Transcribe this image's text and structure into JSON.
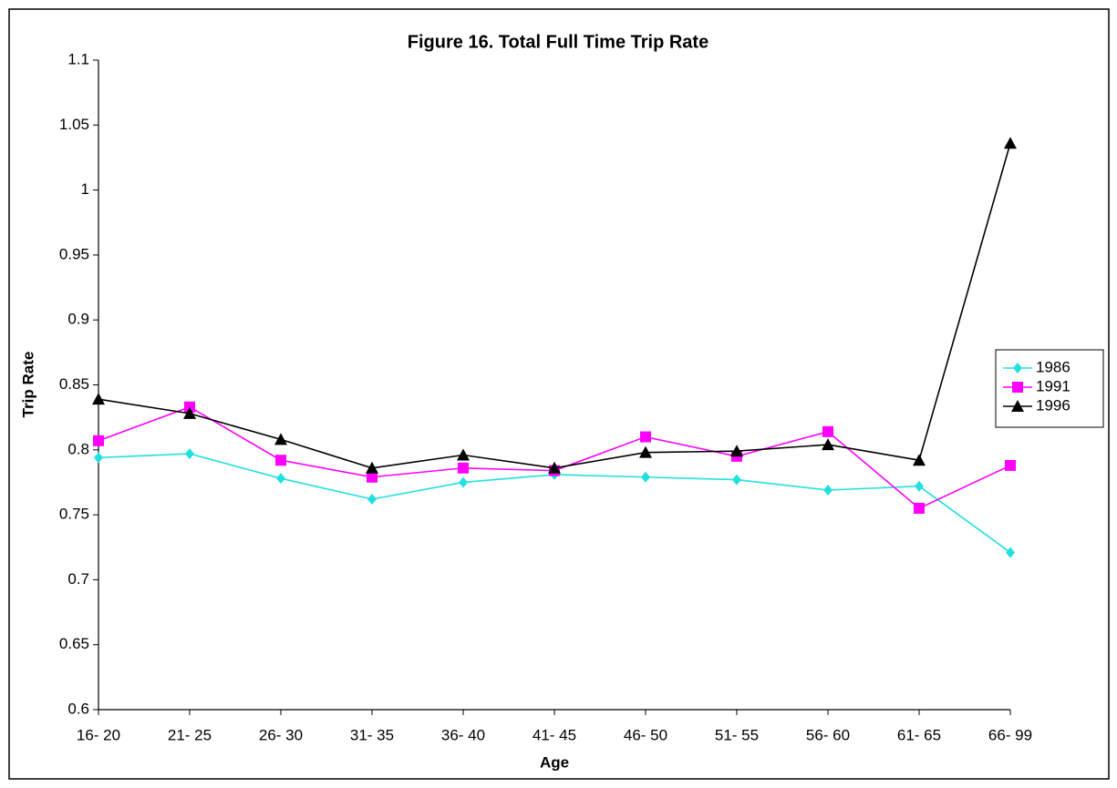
{
  "chart_data": {
    "type": "line",
    "title": "Figure 16. Total Full Time Trip Rate",
    "x_label": "Age",
    "y_label": "Trip Rate",
    "categories": [
      "16- 20",
      "21- 25",
      "26- 30",
      "31- 35",
      "36- 40",
      "41- 45",
      "46- 50",
      "51- 55",
      "56- 60",
      "61- 65",
      "66- 99"
    ],
    "series": [
      {
        "name": "1986",
        "color": "#22e0e0",
        "marker": "diamond",
        "values": [
          0.794,
          0.797,
          0.778,
          0.762,
          0.775,
          0.781,
          0.779,
          0.777,
          0.769,
          0.772,
          0.721
        ]
      },
      {
        "name": "1991",
        "color": "#ff00ff",
        "marker": "square",
        "values": [
          0.807,
          0.833,
          0.792,
          0.779,
          0.786,
          0.784,
          0.81,
          0.795,
          0.814,
          0.755,
          0.788
        ]
      },
      {
        "name": "1996",
        "color": "#000000",
        "marker": "triangle",
        "values": [
          0.839,
          0.828,
          0.808,
          0.786,
          0.796,
          0.786,
          0.798,
          0.799,
          0.804,
          0.792,
          1.036
        ]
      }
    ],
    "ylim": [
      0.6,
      1.1
    ],
    "yticks": [
      0.6,
      0.65,
      0.7,
      0.75,
      0.8,
      0.85,
      0.9,
      0.95,
      1,
      1.05,
      1.1
    ],
    "grid": false,
    "legend": "right"
  }
}
